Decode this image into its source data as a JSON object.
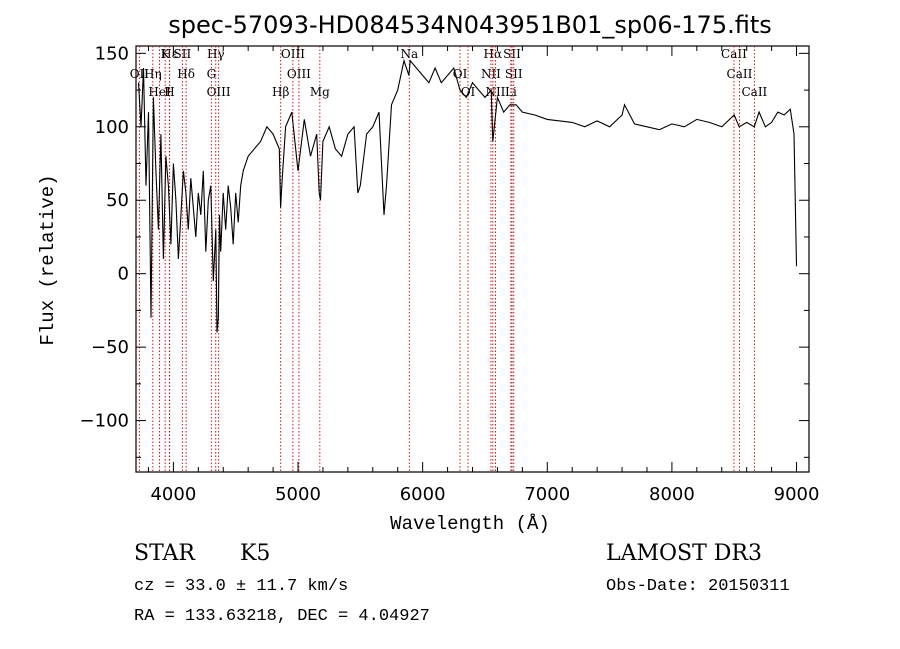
{
  "chart_data": {
    "type": "line",
    "title": "spec-57093-HD084534N043951B01_sp06-175.fits",
    "xlabel": "Wavelength (Å)",
    "ylabel": "Flux (relative)",
    "xlim": [
      3700,
      9100
    ],
    "ylim": [
      -135,
      155
    ],
    "xticks": [
      "4000",
      "5000",
      "6000",
      "7000",
      "8000",
      "9000"
    ],
    "yticks": [
      "-100",
      "-50",
      "0",
      "50",
      "100",
      "150"
    ],
    "series": [
      {
        "x": [
          3720,
          3740,
          3760,
          3780,
          3800,
          3820,
          3840,
          3860,
          3880,
          3900,
          3920,
          3940,
          3960,
          3980,
          4000,
          4020,
          4040,
          4060,
          4080,
          4100,
          4120,
          4140,
          4160,
          4180,
          4200,
          4220,
          4240,
          4260,
          4280,
          4300,
          4320,
          4340,
          4350,
          4360,
          4370,
          4380,
          4400,
          4420,
          4440,
          4460,
          4480,
          4500,
          4520,
          4540,
          4560,
          4580,
          4600,
          4650,
          4700,
          4750,
          4800,
          4850,
          4860,
          4870,
          4900,
          4950,
          5000,
          5050,
          5100,
          5150,
          5170,
          5180,
          5200,
          5250,
          5300,
          5350,
          5400,
          5450,
          5480,
          5500,
          5550,
          5600,
          5650,
          5690,
          5710,
          5750,
          5800,
          5850,
          5890,
          5900,
          5950,
          6000,
          6050,
          6100,
          6150,
          6200,
          6250,
          6300,
          6350,
          6400,
          6450,
          6500,
          6550,
          6563,
          6600,
          6650,
          6700,
          6750,
          6800,
          6900,
          7000,
          7100,
          7200,
          7300,
          7400,
          7500,
          7600,
          7620,
          7700,
          7800,
          7900,
          8000,
          8100,
          8200,
          8300,
          8400,
          8500,
          8540,
          8600,
          8660,
          8700,
          8750,
          8800,
          8850,
          8900,
          8950,
          8980,
          9000
        ],
        "y": [
          130,
          100,
          140,
          60,
          110,
          -30,
          120,
          70,
          30,
          95,
          10,
          80,
          60,
          20,
          75,
          50,
          10,
          40,
          70,
          55,
          30,
          65,
          45,
          25,
          55,
          40,
          70,
          15,
          50,
          60,
          -5,
          30,
          -40,
          -30,
          40,
          15,
          55,
          30,
          60,
          45,
          20,
          55,
          35,
          60,
          70,
          75,
          80,
          85,
          90,
          100,
          95,
          85,
          45,
          60,
          100,
          110,
          70,
          105,
          80,
          95,
          55,
          50,
          90,
          100,
          85,
          80,
          95,
          100,
          55,
          60,
          95,
          100,
          110,
          40,
          60,
          115,
          125,
          145,
          135,
          145,
          140,
          135,
          130,
          140,
          130,
          135,
          140,
          125,
          120,
          130,
          125,
          120,
          125,
          90,
          120,
          110,
          115,
          115,
          110,
          108,
          105,
          104,
          103,
          100,
          104,
          100,
          108,
          115,
          102,
          100,
          98,
          102,
          100,
          105,
          103,
          100,
          108,
          100,
          103,
          100,
          110,
          100,
          103,
          110,
          108,
          112,
          95,
          5
        ]
      }
    ],
    "line_markers": [
      {
        "name": "Hε",
        "wavelength": 3970
      },
      {
        "name": "OII",
        "wavelength": 3727
      },
      {
        "name": "HeI",
        "wavelength": 3889
      },
      {
        "name": "K",
        "wavelength": 3934
      },
      {
        "name": "Hη",
        "wavelength": 3835
      },
      {
        "name": "H",
        "wavelength": 3969
      },
      {
        "name": "SII",
        "wavelength": 4072
      },
      {
        "name": "Hδ",
        "wavelength": 4102
      },
      {
        "name": "OIII",
        "wavelength": 4363
      },
      {
        "name": "Hγ",
        "wavelength": 4340
      },
      {
        "name": "G",
        "wavelength": 4305
      },
      {
        "name": "Hβ",
        "wavelength": 4861
      },
      {
        "name": "OIII",
        "wavelength": 4959
      },
      {
        "name": "OIII",
        "wavelength": 5007
      },
      {
        "name": "Mg",
        "wavelength": 5175
      },
      {
        "name": "Na",
        "wavelength": 5893
      },
      {
        "name": "OI",
        "wavelength": 6300
      },
      {
        "name": "OI",
        "wavelength": 6364
      },
      {
        "name": "Hα",
        "wavelength": 6563
      },
      {
        "name": "NII",
        "wavelength": 6548
      },
      {
        "name": "NII",
        "wavelength": 6584
      },
      {
        "name": "SII",
        "wavelength": 6717
      },
      {
        "name": "SII",
        "wavelength": 6731
      },
      {
        "name": "Li",
        "wavelength": 6708
      },
      {
        "name": "CaII",
        "wavelength": 8498
      },
      {
        "name": "CaII",
        "wavelength": 8542
      },
      {
        "name": "CaII",
        "wavelength": 8662
      }
    ]
  },
  "info": {
    "class": "STAR",
    "subclass": "K5",
    "cz": "cz = 33.0 ± 11.7 km/s",
    "coords": "RA = 133.63218, DEC =   4.04927",
    "survey": "LAMOST DR3",
    "obs_date": "Obs-Date: 20150311"
  }
}
